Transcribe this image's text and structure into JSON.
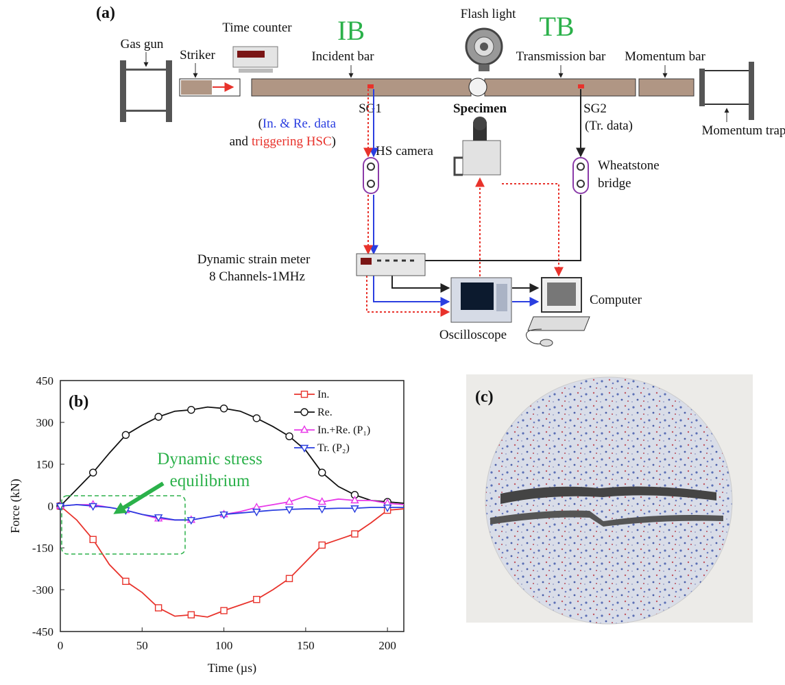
{
  "panel_a": {
    "label": "(a)",
    "gas_gun": "Gas gun",
    "striker": "Striker",
    "time_counter": "Time counter",
    "ib": "IB",
    "tb": "TB",
    "flash_light": "Flash light",
    "incident_bar": "Incident bar",
    "transmission_bar": "Transmission bar",
    "momentum_bar": "Momentum bar",
    "sg1": "SG1",
    "specimen": "Specimen",
    "sg2": "SG2",
    "sg2_note": "(Tr. data)",
    "momentum_trap": "Momentum trap",
    "sg1_note_open": "(",
    "sg1_note_data": "In. & Re. data",
    "sg1_note_and": "and",
    "sg1_note_trigger": "triggering HSC",
    "sg1_note_close": ")",
    "hs_camera": "HS camera",
    "wheatstone": [
      "Wheatstone",
      "bridge"
    ],
    "strain_meter": [
      "Dynamic strain meter",
      "8 Channels-1MHz"
    ],
    "oscilloscope": "Oscilloscope",
    "computer": "Computer"
  },
  "chart_data": {
    "type": "line",
    "panel_label": "(b)",
    "xlabel": "Time (µs)",
    "ylabel": "Force (kN)",
    "annotation": [
      "Dynamic stress",
      "equilibrium"
    ],
    "x": [
      0,
      10,
      20,
      30,
      40,
      50,
      60,
      70,
      80,
      90,
      100,
      110,
      120,
      130,
      140,
      150,
      160,
      170,
      180,
      190,
      200,
      210
    ],
    "series": [
      {
        "name": "In.",
        "color": "#e8322b",
        "marker": "square",
        "values": [
          0,
          -50,
          -120,
          -210,
          -270,
          -310,
          -365,
          -395,
          -390,
          -398,
          -375,
          -355,
          -335,
          -300,
          -260,
          -200,
          -140,
          -120,
          -100,
          -60,
          -15,
          -10
        ]
      },
      {
        "name": "Re.",
        "color": "#111111",
        "marker": "circle",
        "values": [
          0,
          60,
          120,
          190,
          255,
          290,
          320,
          340,
          345,
          355,
          350,
          340,
          315,
          285,
          250,
          200,
          120,
          70,
          40,
          20,
          15,
          10
        ]
      },
      {
        "name": "In.+Re. (P₁)",
        "color": "#e838e8",
        "marker": "triangle-up",
        "values": [
          0,
          5,
          5,
          -5,
          -15,
          -30,
          -45,
          -50,
          -50,
          -40,
          -30,
          -20,
          -5,
          5,
          15,
          35,
          15,
          25,
          20,
          20,
          10,
          5
        ]
      },
      {
        "name": "Tr. (P₂)",
        "color": "#2a3ee0",
        "marker": "triangle-down",
        "values": [
          0,
          5,
          0,
          -5,
          -15,
          -30,
          -40,
          -50,
          -50,
          -40,
          -30,
          -25,
          -20,
          -15,
          -12,
          -10,
          -10,
          -8,
          -8,
          -5,
          -5,
          -5
        ]
      }
    ],
    "xlim": [
      0,
      210
    ],
    "xticks": [
      0,
      50,
      100,
      150,
      200
    ],
    "ylim": [
      -450,
      450
    ],
    "yticks": [
      450,
      300,
      150,
      0,
      -150,
      -300,
      -450
    ],
    "legend": "upper right"
  },
  "panel_c": {
    "label": "(c)"
  }
}
